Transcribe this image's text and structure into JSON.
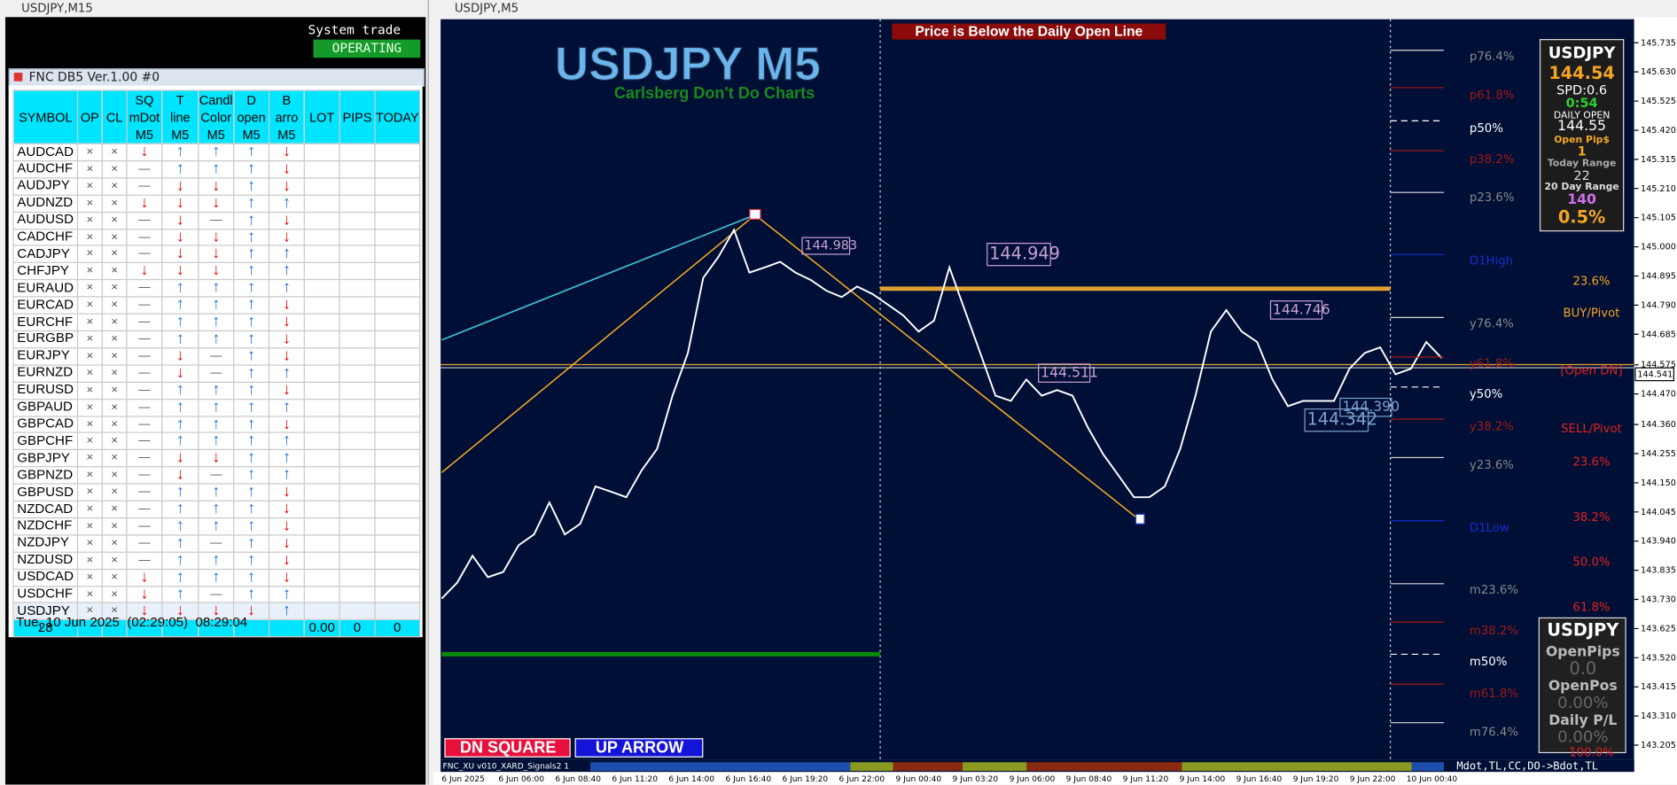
{
  "left_window": {
    "title": "USDJPY,M15",
    "system_trade": "System trade",
    "status": "OPERATING",
    "panel_title": "FNC DB5 Ver.1.00 #0",
    "table": {
      "header": [
        [
          "SYMBOL"
        ],
        [
          "OP"
        ],
        [
          "CL"
        ],
        [
          "SQ",
          "mDot",
          "M5"
        ],
        [
          "T",
          "line",
          "M5"
        ],
        [
          "Candl",
          "Color",
          "M5"
        ],
        [
          "D",
          "open",
          "M5"
        ],
        [
          "B",
          "arro",
          "M5"
        ],
        [
          "LOT"
        ],
        [
          "PIPS"
        ],
        [
          "TODAY"
        ]
      ],
      "rows": [
        [
          "AUDCAD",
          "×",
          "×",
          "↓",
          "↑",
          "↑",
          "↑",
          "↓"
        ],
        [
          "AUDCHF",
          "×",
          "×",
          "—",
          "↑",
          "↑",
          "↑",
          "↓"
        ],
        [
          "AUDJPY",
          "×",
          "×",
          "—",
          "↓",
          "↓",
          "↑",
          "↓"
        ],
        [
          "AUDNZD",
          "×",
          "×",
          "↓",
          "↓",
          "↓",
          "↑",
          "↑"
        ],
        [
          "AUDUSD",
          "×",
          "×",
          "—",
          "↓",
          "—",
          "↑",
          "↓"
        ],
        [
          "CADCHF",
          "×",
          "×",
          "—",
          "↓",
          "↓",
          "↑",
          "↓"
        ],
        [
          "CADJPY",
          "×",
          "×",
          "—",
          "↓",
          "↓",
          "↑",
          "↑"
        ],
        [
          "CHFJPY",
          "×",
          "×",
          "↓",
          "↓",
          "↓",
          "↑",
          "↑"
        ],
        [
          "EURAUD",
          "×",
          "×",
          "—",
          "↑",
          "↑",
          "↑",
          "↑"
        ],
        [
          "EURCAD",
          "×",
          "×",
          "—",
          "↑",
          "↑",
          "↑",
          "↓"
        ],
        [
          "EURCHF",
          "×",
          "×",
          "—",
          "↑",
          "↑",
          "↑",
          "↓"
        ],
        [
          "EURGBP",
          "×",
          "×",
          "—",
          "↑",
          "↑",
          "↑",
          "↓"
        ],
        [
          "EURJPY",
          "×",
          "×",
          "—",
          "↓",
          "—",
          "↑",
          "↓"
        ],
        [
          "EURNZD",
          "×",
          "×",
          "—",
          "↓",
          "—",
          "↑",
          "↑"
        ],
        [
          "EURUSD",
          "×",
          "×",
          "—",
          "↑",
          "↑",
          "↑",
          "↓"
        ],
        [
          "GBPAUD",
          "×",
          "×",
          "—",
          "↑",
          "↑",
          "↑",
          "↑"
        ],
        [
          "GBPCAD",
          "×",
          "×",
          "—",
          "↑",
          "↑",
          "↑",
          "↓"
        ],
        [
          "GBPCHF",
          "×",
          "×",
          "—",
          "↑",
          "↑",
          "↑",
          "↑"
        ],
        [
          "GBPJPY",
          "×",
          "×",
          "—",
          "↓",
          "↓",
          "↑",
          "↑"
        ],
        [
          "GBPNZD",
          "×",
          "×",
          "—",
          "↓",
          "—",
          "↑",
          "↑"
        ],
        [
          "GBPUSD",
          "×",
          "×",
          "—",
          "↑",
          "↑",
          "↑",
          "↓"
        ],
        [
          "NZDCAD",
          "×",
          "×",
          "—",
          "↑",
          "↑",
          "↑",
          "↓"
        ],
        [
          "NZDCHF",
          "×",
          "×",
          "—",
          "↑",
          "↑",
          "↑",
          "↓"
        ],
        [
          "NZDJPY",
          "×",
          "×",
          "—",
          "↑",
          "—",
          "↑",
          "↓"
        ],
        [
          "NZDUSD",
          "×",
          "×",
          "—",
          "↑",
          "↑",
          "↑",
          "↓"
        ],
        [
          "USDCAD",
          "×",
          "×",
          "↓",
          "↑",
          "↑",
          "↑",
          "↓"
        ],
        [
          "USDCHF",
          "×",
          "×",
          "↓",
          "↑",
          "—",
          "↑",
          "↑"
        ],
        [
          "USDJPY",
          "×",
          "×",
          "↓",
          "↓",
          "↓",
          "↓",
          "↑"
        ]
      ],
      "footer": [
        "28",
        "0.00",
        "0",
        "0"
      ]
    },
    "datetime": "Tue, 10 Jun 2025  (02:29:05)  08:29:04"
  },
  "chart_window": {
    "title": "USDJPY,M5",
    "chart_title": "USDJPY M5",
    "subtitle": "Carlsberg Don't Do Charts",
    "banner": "Price is Below the Daily Open Line",
    "price_labels": [
      "144.983",
      "144.949",
      "144.746",
      "144.511",
      "144.390",
      "144.342"
    ],
    "levels_left": [
      "p76.4%",
      "p61.8%",
      "p50%",
      "p38.2%",
      "p23.6%",
      "D1High",
      "y76.4%",
      "y61.8%",
      "y50%",
      "y38.2%",
      "y23.6%",
      "D1Low",
      "m23.6%",
      "m38.2%",
      "m50%",
      "m61.8%",
      "m76.4%"
    ],
    "levels_right": [
      "23.6%",
      "BUY/Pivot",
      "[Open DN]",
      "SELL/Pivot",
      "23.6%",
      "38.2%",
      "50.0%",
      "61.8%",
      "100.0%"
    ],
    "info_box": [
      "USDJPY",
      "144.54",
      "SPD:0.6",
      "0:54",
      "DAILY OPEN",
      "144.55",
      "Open Pip$",
      "1",
      "Today Range",
      "22",
      "20 Day Range",
      "140",
      "0.5%"
    ],
    "pl_box": [
      "USDJPY",
      "OpenPips",
      "0.0",
      "OpenPos",
      "0.00%",
      "Daily P/L",
      "0.00%"
    ],
    "buttons": [
      "DN SQUARE",
      "UP ARROW"
    ],
    "indicator": "FNC_XU v010_XARD_Signals2 1",
    "indicator_right": "Mdot,TL,CC,DO->Bdot,TL",
    "price_chart": {
      "type": "line",
      "color": "#ffffff",
      "values": [
        143.733,
        143.79,
        143.887,
        143.81,
        143.829,
        143.925,
        143.964,
        144.079,
        143.964,
        144.002,
        144.137,
        144.118,
        144.098,
        144.195,
        144.272,
        144.464,
        144.618,
        144.888,
        144.965,
        145.061,
        144.907,
        144.926,
        144.946,
        144.907,
        144.88,
        144.842,
        144.819,
        144.857,
        144.83,
        144.792,
        144.753,
        144.695,
        144.734,
        144.926,
        144.772,
        144.618,
        144.464,
        144.445,
        144.522,
        144.464,
        144.484,
        144.464,
        144.349,
        144.253,
        144.176,
        144.098,
        144.098,
        144.137,
        144.272,
        144.464,
        144.695,
        144.772,
        144.695,
        144.657,
        144.522,
        144.426,
        144.445,
        144.445,
        144.445,
        144.561,
        144.618,
        144.638,
        144.541,
        144.561,
        144.657,
        144.599
      ],
      "ylim": [
        143.155,
        145.812
      ],
      "yticks": [
        145.735,
        {
          "value": 145.63,
          "label": "145.630"
        },
        145.525,
        {
          "value": 145.42,
          "label": "145.420"
        },
        145.315,
        {
          "value": 145.21,
          "label": "145.210"
        },
        145.105,
        {
          "value": 145,
          "label": "145.000"
        },
        144.895,
        {
          "value": 144.79,
          "label": "144.790"
        },
        144.685,
        144.575,
        {
          "value": 144.47,
          "label": "144.470"
        },
        {
          "value": 144.36,
          "label": "144.360"
        },
        144.255,
        {
          "value": 144.15,
          "label": "144.150"
        },
        144.045,
        {
          "value": 143.94,
          "label": "143.940"
        },
        143.835,
        {
          "value": 143.73,
          "label": "143.730"
        },
        143.625,
        {
          "value": 143.52,
          "label": "143.520"
        },
        143.415,
        {
          "value": 143.31,
          "label": "143.310"
        },
        143.205
      ],
      "current_price": 144.541,
      "x_labels": [
        "6 Jun 2025",
        "6 Jun 06:00",
        "6 Jun 08:40",
        "6 Jun 11:20",
        "6 Jun 14:00",
        "6 Jun 16:40",
        "6 Jun 19:20",
        "6 Jun 22:00",
        "9 Jun 00:40",
        "9 Jun 03:20",
        "9 Jun 06:00",
        "9 Jun 08:40",
        "9 Jun 11:20",
        "9 Jun 14:00",
        "9 Jun 16:40",
        "9 Jun 19:20",
        "9 Jun 22:00",
        "10 Jun 00:40"
      ]
    }
  }
}
